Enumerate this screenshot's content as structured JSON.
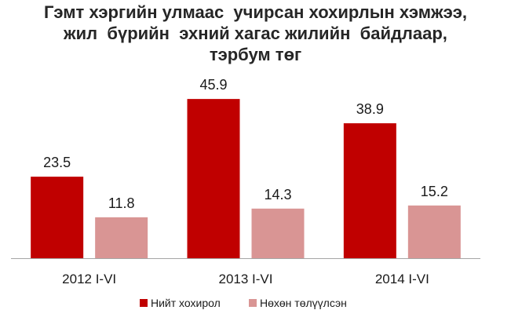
{
  "chart_data": {
    "type": "bar",
    "title_lines": [
      "Гэмт хэргийн улмаас  учирсан хохирлын хэмжээ,",
      "жил  бүрийн  эхний хагас жилийн  байдлаар,",
      "тэрбум төг"
    ],
    "categories": [
      "2012 I-VI",
      "2013 I-VI",
      "2014 I-VI"
    ],
    "series": [
      {
        "name": "Нийт хохирол",
        "values": [
          23.5,
          45.9,
          38.9
        ],
        "color": "#c00000"
      },
      {
        "name": "Нөхөн төлүүлсэн",
        "values": [
          11.8,
          14.3,
          15.2
        ],
        "color": "#d99594"
      }
    ],
    "ylim": [
      0,
      50
    ],
    "grid": false,
    "legend_position": "bottom"
  }
}
